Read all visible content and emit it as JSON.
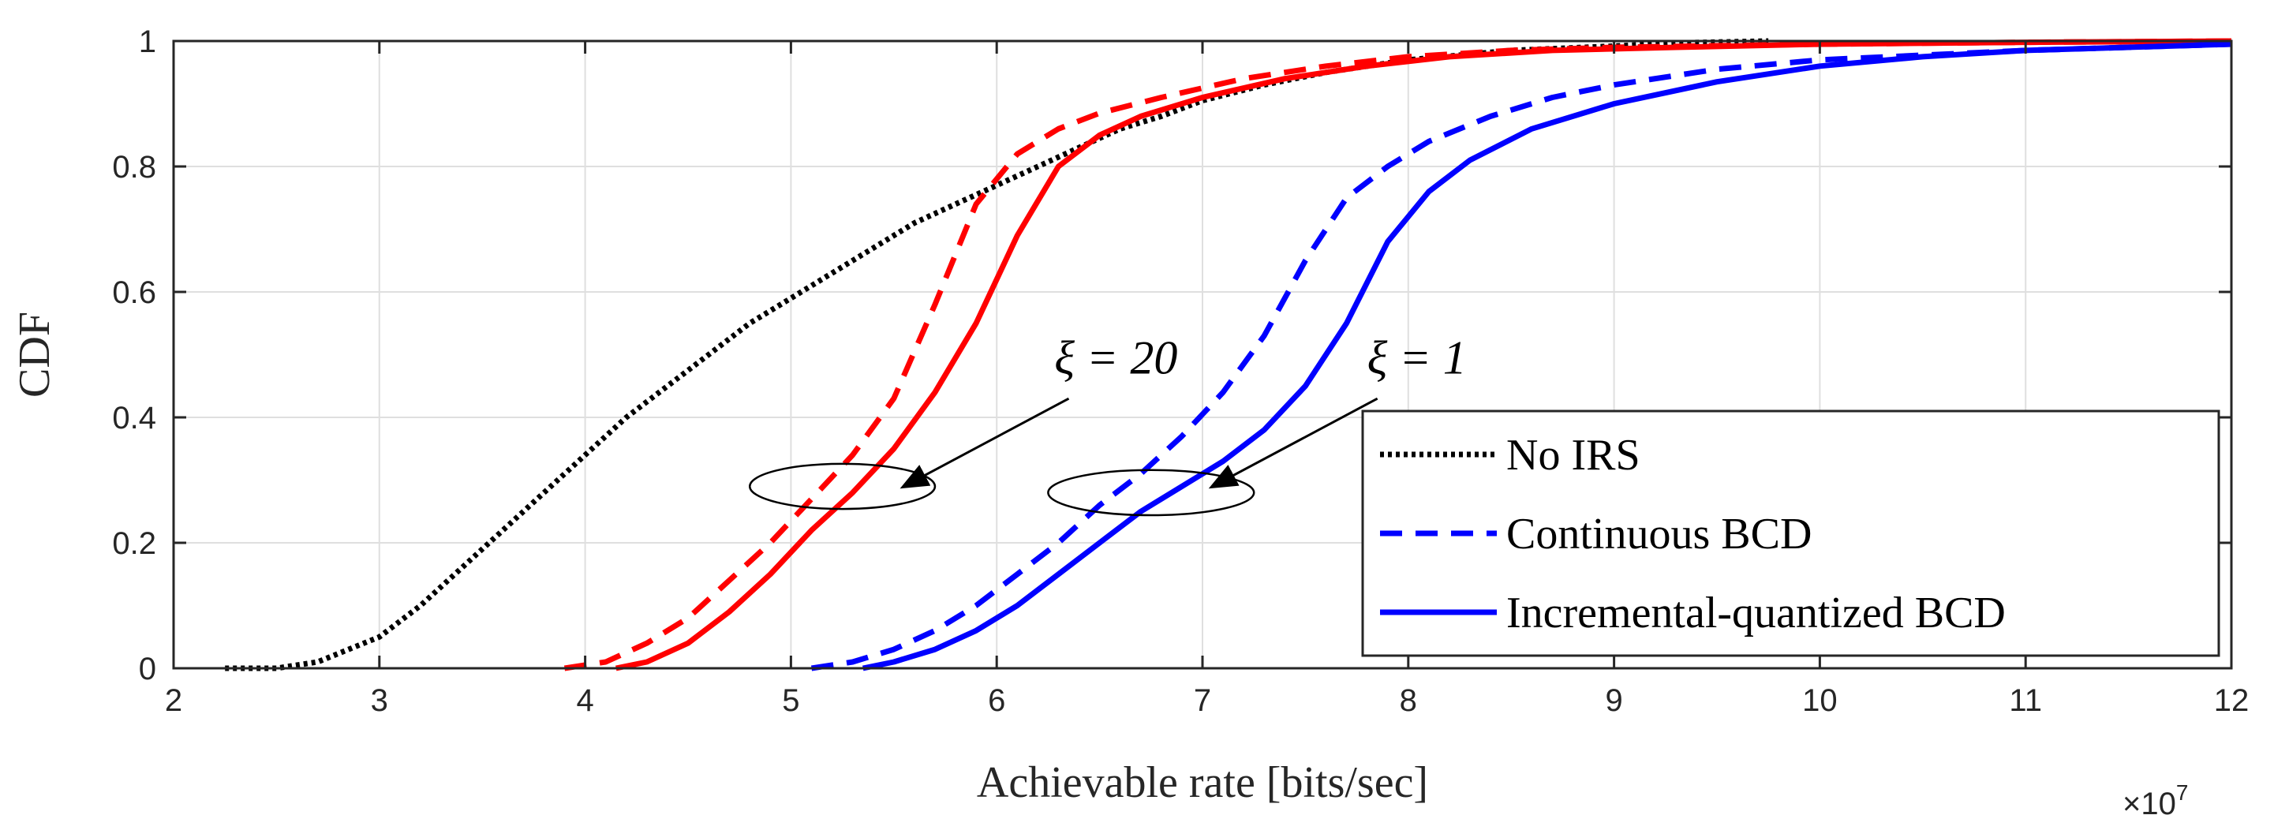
{
  "chart_data": {
    "type": "line",
    "title": "",
    "xlabel": "Achievable rate [bits/sec]",
    "ylabel": "CDF",
    "x_exponent_label": "×10",
    "x_exponent_power": "7",
    "xlim": [
      2,
      12
    ],
    "ylim": [
      0,
      1
    ],
    "grid": true,
    "legend_position": "bottom-right",
    "x_ticks": [
      2,
      3,
      4,
      5,
      6,
      7,
      8,
      9,
      10,
      11,
      12
    ],
    "y_ticks": [
      0,
      0.2,
      0.4,
      0.6,
      0.8,
      1
    ],
    "series": [
      {
        "name": "No IRS",
        "color": "#000000",
        "style": "dotted",
        "in_legend": true,
        "x": [
          2.25,
          2.5,
          2.7,
          2.85,
          3.0,
          3.2,
          3.4,
          3.6,
          3.8,
          4.0,
          4.2,
          4.4,
          4.6,
          4.8,
          5.0,
          5.2,
          5.4,
          5.6,
          5.8,
          6.0,
          6.2,
          6.4,
          6.6,
          6.8,
          7.0,
          7.3,
          7.6,
          8.0,
          8.5,
          9.0,
          9.3,
          9.6,
          9.75
        ],
        "y": [
          0.0,
          0.0,
          0.01,
          0.03,
          0.05,
          0.1,
          0.16,
          0.22,
          0.28,
          0.34,
          0.4,
          0.45,
          0.5,
          0.55,
          0.59,
          0.63,
          0.67,
          0.71,
          0.74,
          0.77,
          0.8,
          0.83,
          0.86,
          0.88,
          0.905,
          0.93,
          0.95,
          0.97,
          0.985,
          0.992,
          0.997,
          0.999,
          1.0
        ]
      },
      {
        "name": "Continuous BCD (ξ = 20)",
        "color": "#ff0000",
        "style": "dashed",
        "in_legend": false,
        "x": [
          3.9,
          4.1,
          4.3,
          4.5,
          4.7,
          4.9,
          5.1,
          5.3,
          5.5,
          5.7,
          5.9,
          6.1,
          6.3,
          6.5,
          6.8,
          7.2,
          7.6,
          8.0,
          8.5,
          9.0,
          10.0,
          11.0,
          12.0
        ],
        "y": [
          0.0,
          0.01,
          0.04,
          0.08,
          0.14,
          0.2,
          0.27,
          0.34,
          0.43,
          0.58,
          0.74,
          0.82,
          0.86,
          0.885,
          0.91,
          0.94,
          0.96,
          0.975,
          0.985,
          0.99,
          0.995,
          0.998,
          1.0
        ]
      },
      {
        "name": "Incremental-quantized BCD (ξ = 20)",
        "color": "#ff0000",
        "style": "solid",
        "in_legend": false,
        "x": [
          4.15,
          4.3,
          4.5,
          4.7,
          4.9,
          5.1,
          5.3,
          5.5,
          5.7,
          5.9,
          6.1,
          6.3,
          6.5,
          6.7,
          7.0,
          7.4,
          7.8,
          8.2,
          8.7,
          9.3,
          10.0,
          11.0,
          12.0
        ],
        "y": [
          0.0,
          0.01,
          0.04,
          0.09,
          0.15,
          0.22,
          0.28,
          0.35,
          0.44,
          0.55,
          0.69,
          0.8,
          0.85,
          0.88,
          0.91,
          0.94,
          0.96,
          0.975,
          0.985,
          0.99,
          0.995,
          0.998,
          1.0
        ]
      },
      {
        "name": "Continuous BCD",
        "color": "#0000ff",
        "style": "dashed",
        "in_legend": true,
        "x": [
          5.1,
          5.3,
          5.5,
          5.7,
          5.9,
          6.1,
          6.3,
          6.5,
          6.7,
          6.9,
          7.1,
          7.3,
          7.5,
          7.7,
          7.9,
          8.1,
          8.4,
          8.7,
          9.0,
          9.5,
          10.0,
          11.0,
          12.0
        ],
        "y": [
          0.0,
          0.01,
          0.03,
          0.06,
          0.1,
          0.15,
          0.2,
          0.26,
          0.31,
          0.37,
          0.44,
          0.53,
          0.65,
          0.75,
          0.8,
          0.84,
          0.88,
          0.91,
          0.93,
          0.955,
          0.97,
          0.985,
          0.995
        ]
      },
      {
        "name": "Incremental-quantized BCD",
        "color": "#0000ff",
        "style": "solid",
        "in_legend": true,
        "x": [
          5.35,
          5.5,
          5.7,
          5.9,
          6.1,
          6.3,
          6.5,
          6.7,
          6.9,
          7.1,
          7.3,
          7.5,
          7.7,
          7.9,
          8.1,
          8.3,
          8.6,
          9.0,
          9.5,
          10.0,
          10.5,
          11.0,
          12.0
        ],
        "y": [
          0.0,
          0.01,
          0.03,
          0.06,
          0.1,
          0.15,
          0.2,
          0.25,
          0.29,
          0.33,
          0.38,
          0.45,
          0.55,
          0.68,
          0.76,
          0.81,
          0.86,
          0.9,
          0.935,
          0.96,
          0.975,
          0.985,
          0.995
        ]
      }
    ],
    "legend": [
      {
        "label": "No IRS",
        "color": "#000000",
        "style": "dotted"
      },
      {
        "label": "Continuous BCD",
        "color": "#0000ff",
        "style": "dashed"
      },
      {
        "label": "Incremental-quantized BCD",
        "color": "#0000ff",
        "style": "solid"
      }
    ],
    "annotations": [
      {
        "text": "ξ = 20",
        "ellipse_center": [
          5.25,
          0.29
        ],
        "ellipse_rx": 0.45,
        "ellipse_ry": 0.036,
        "arrow_from": [
          6.35,
          0.43
        ],
        "arrow_to": [
          5.55,
          0.29
        ],
        "text_at": [
          6.28,
          0.47
        ]
      },
      {
        "text": "ξ = 1",
        "ellipse_center": [
          6.75,
          0.28
        ],
        "ellipse_rx": 0.5,
        "ellipse_ry": 0.036,
        "arrow_from": [
          7.85,
          0.43
        ],
        "arrow_to": [
          7.05,
          0.29
        ],
        "text_at": [
          7.8,
          0.47
        ]
      }
    ]
  }
}
